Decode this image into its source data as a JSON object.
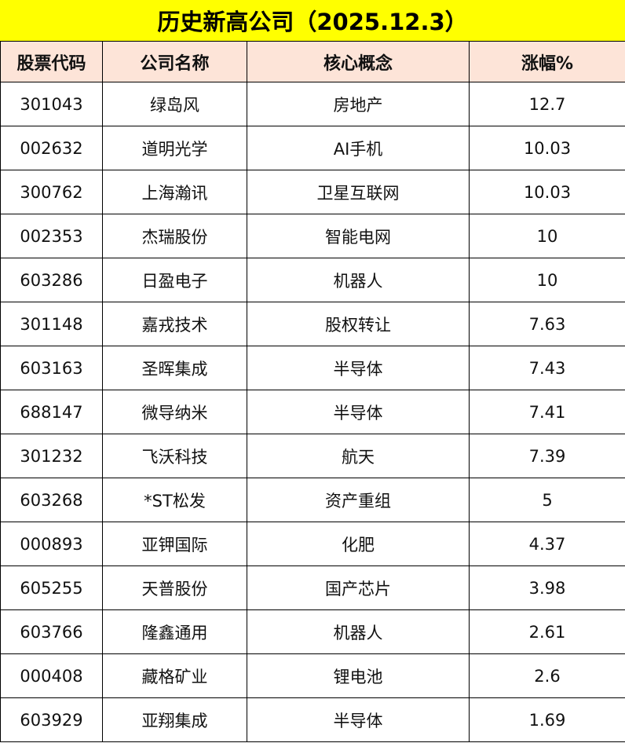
{
  "title": "历史新高公司（2025.12.3）",
  "colors": {
    "title_bg": "#ffff00",
    "header_bg": "#fde4d8"
  },
  "columns": [
    "股票代码",
    "公司名称",
    "核心概念",
    "涨幅%"
  ],
  "rows": [
    [
      "301043",
      "绿岛风",
      "房地产",
      "12.7"
    ],
    [
      "002632",
      "道明光学",
      "AI手机",
      "10.03"
    ],
    [
      "300762",
      "上海瀚讯",
      "卫星互联网",
      "10.03"
    ],
    [
      "002353",
      "杰瑞股份",
      "智能电网",
      "10"
    ],
    [
      "603286",
      "日盈电子",
      "机器人",
      "10"
    ],
    [
      "301148",
      "嘉戎技术",
      "股权转让",
      "7.63"
    ],
    [
      "603163",
      "圣晖集成",
      "半导体",
      "7.43"
    ],
    [
      "688147",
      "微导纳米",
      "半导体",
      "7.41"
    ],
    [
      "301232",
      "飞沃科技",
      "航天",
      "7.39"
    ],
    [
      "603268",
      "*ST松发",
      "资产重组",
      "5"
    ],
    [
      "000893",
      "亚钾国际",
      "化肥",
      "4.37"
    ],
    [
      "605255",
      "天普股份",
      "国产芯片",
      "3.98"
    ],
    [
      "603766",
      "隆鑫通用",
      "机器人",
      "2.61"
    ],
    [
      "000408",
      "藏格矿业",
      "锂电池",
      "2.6"
    ],
    [
      "603929",
      "亚翔集成",
      "半导体",
      "1.69"
    ]
  ]
}
